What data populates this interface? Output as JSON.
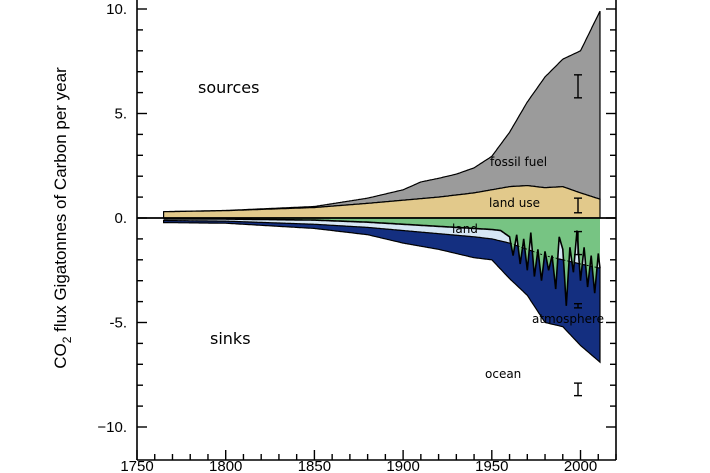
{
  "chart_data": {
    "type": "area",
    "xlim": [
      1750,
      2020
    ],
    "ylim": [
      -10.5,
      10.5
    ],
    "xticks": [
      1750,
      1800,
      1850,
      1900,
      1950,
      2000
    ],
    "yticks": [
      10,
      5,
      0,
      -5,
      -10
    ],
    "ytick_labels": [
      "10.",
      "5.",
      "0.",
      "-5.",
      "−10."
    ],
    "ylabel_main": "CO",
    "ylabel_sub": "2",
    "ylabel_rest": " flux Gigatonnes of Carbon per year",
    "annotations": {
      "sources": "sources",
      "sinks": "sinks",
      "fossil_fuel": "fossil fuel",
      "land_use": "land use",
      "land": "land",
      "atmosphere": "atmosphere",
      "ocean": "ocean"
    },
    "colors": {
      "fossil_fuel": "#9b9b9b",
      "land_use": "#e2c98b",
      "land": "#77c483",
      "atmosphere": "#d6e6f4",
      "ocean": "#142f80"
    },
    "series": [
      {
        "name": "land use",
        "x": [
          1765,
          1800,
          1850,
          1880,
          1900,
          1920,
          1940,
          1950,
          1960,
          1970,
          1980,
          1990,
          2000,
          2011
        ],
        "values": [
          0.3,
          0.35,
          0.5,
          0.7,
          0.85,
          1.0,
          1.2,
          1.35,
          1.5,
          1.55,
          1.45,
          1.5,
          1.2,
          0.9
        ]
      },
      {
        "name": "fossil fuel",
        "x": [
          1765,
          1800,
          1850,
          1880,
          1900,
          1910,
          1920,
          1930,
          1940,
          1950,
          1960,
          1970,
          1980,
          1990,
          2000,
          2005,
          2011
        ],
        "values": [
          0.003,
          0.01,
          0.05,
          0.25,
          0.5,
          0.8,
          0.9,
          1.0,
          1.2,
          1.6,
          2.6,
          4.0,
          5.3,
          6.1,
          6.8,
          7.8,
          9.0
        ]
      },
      {
        "name": "ocean",
        "x": [
          1765,
          1800,
          1850,
          1880,
          1900,
          1920,
          1940,
          1950,
          1960,
          1970,
          1980,
          1990,
          2000,
          2011
        ],
        "values": [
          -0.12,
          -0.15,
          -0.3,
          -0.45,
          -0.6,
          -0.75,
          -0.9,
          -1.0,
          -1.2,
          -1.5,
          -1.8,
          -2.0,
          -2.2,
          -2.4
        ]
      },
      {
        "name": "atmosphere",
        "x": [
          1765,
          1800,
          1850,
          1880,
          1900,
          1920,
          1940,
          1950,
          1960,
          1970,
          1980,
          1990,
          2000,
          2011
        ],
        "values": [
          -0.1,
          -0.1,
          -0.2,
          -0.35,
          -0.6,
          -0.75,
          -1.0,
          -1.0,
          -1.7,
          -2.2,
          -3.2,
          -3.2,
          -3.9,
          -4.5
        ]
      },
      {
        "name": "land",
        "x": [
          1765,
          1800,
          1850,
          1880,
          1900,
          1920,
          1940,
          1950,
          1955,
          1960,
          1962,
          1964,
          1966,
          1968,
          1970,
          1972,
          1974,
          1976,
          1978,
          1980,
          1982,
          1984,
          1986,
          1988,
          1990,
          1992,
          1994,
          1996,
          1998,
          2000,
          2002,
          2004,
          2006,
          2008,
          2010,
          2011
        ],
        "values": [
          -0.05,
          -0.05,
          -0.1,
          -0.2,
          -0.3,
          -0.4,
          -0.5,
          -0.55,
          -0.6,
          -0.9,
          -1.8,
          -0.8,
          -2.2,
          -1.0,
          -2.5,
          -0.7,
          -2.8,
          -1.5,
          -3.0,
          -1.6,
          -2.5,
          -1.8,
          -3.4,
          -0.9,
          -1.5,
          -4.2,
          -1.4,
          -2.6,
          -0.6,
          -3.0,
          -1.4,
          -3.3,
          -1.8,
          -3.6,
          -1.7,
          -2.4
        ]
      }
    ],
    "error_bars": [
      {
        "series": "fossil fuel",
        "center": 6.3,
        "half": 0.55
      },
      {
        "series": "land use",
        "center": 0.6,
        "half": 0.35
      },
      {
        "series": "land",
        "center": -1.2,
        "half": 0.55
      },
      {
        "series": "atmosphere",
        "center": -4.2,
        "half": 0.1
      },
      {
        "series": "ocean",
        "center": -8.2,
        "half": 0.3
      }
    ],
    "grid": false
  }
}
